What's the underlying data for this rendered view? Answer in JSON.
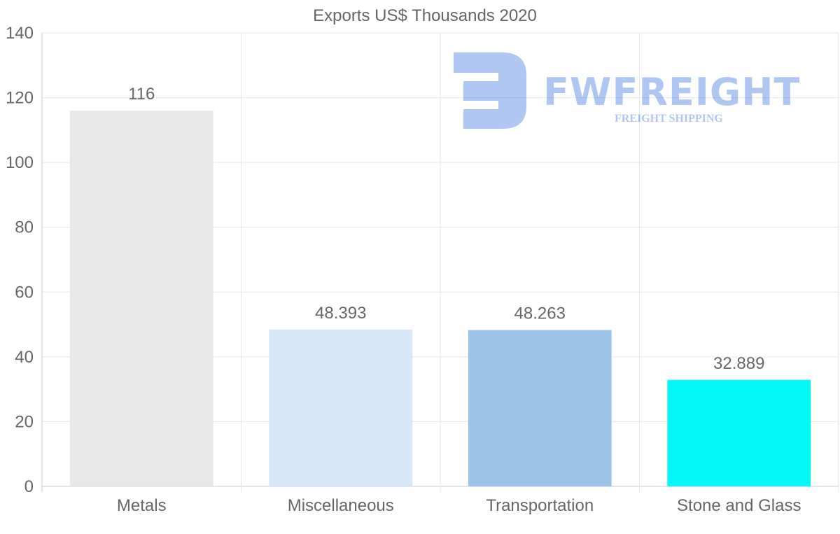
{
  "chart_data": {
    "type": "bar",
    "title": "Exports US$ Thousands 2020",
    "categories": [
      "Metals",
      "Miscellaneous",
      "Transportation",
      "Stone and Glass"
    ],
    "values": [
      116,
      48.393,
      48.263,
      32.889
    ],
    "value_labels": [
      "116",
      "48.393",
      "48.263",
      "32.889"
    ],
    "colors": [
      "#e8e8e8",
      "#d6e7f8",
      "#9bc4e6",
      "#05f7f7"
    ],
    "ylim": [
      0,
      140
    ],
    "yticks": [
      0,
      20,
      40,
      60,
      80,
      100,
      120,
      140
    ],
    "xlabel": "",
    "ylabel": "",
    "grid": true,
    "legend": "none"
  },
  "watermark": {
    "name": "FWFREIGHT",
    "tagline": "FREIGHT SHIPPING"
  }
}
